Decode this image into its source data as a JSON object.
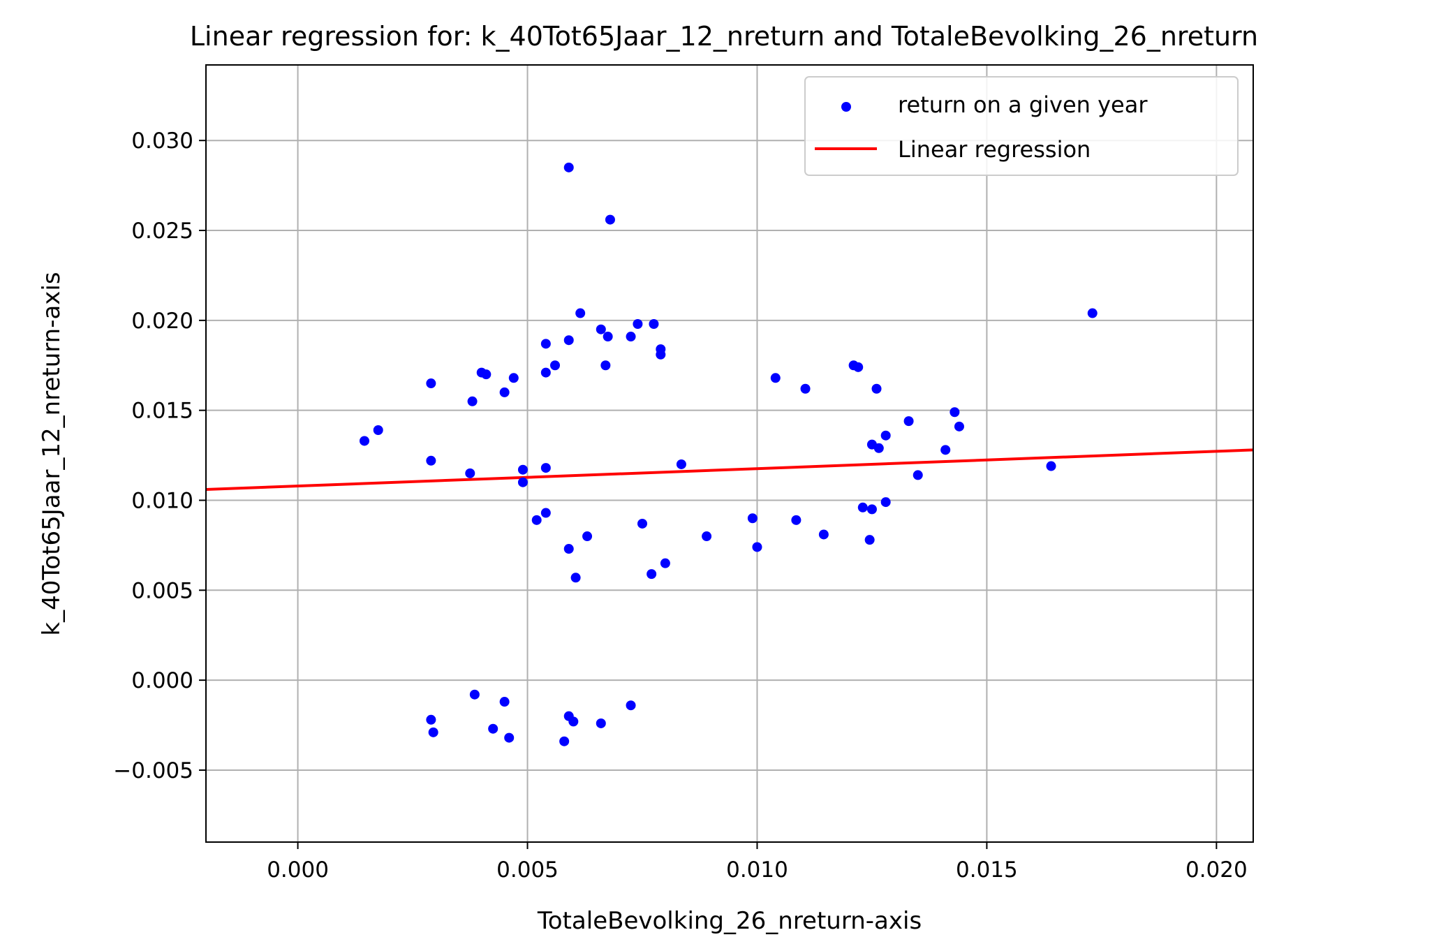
{
  "chart_data": {
    "type": "scatter",
    "title": "Linear regression for: k_40Tot65Jaar_12_nreturn and TotaleBevolking_26_nreturn",
    "xlabel": "TotaleBevolking_26_nreturn-axis",
    "ylabel": "k_40Tot65Jaar_12_nreturn-axis",
    "xlim": [
      -0.002,
      0.0208
    ],
    "ylim": [
      -0.009,
      0.0342
    ],
    "grid": true,
    "legend_position": "top-right",
    "x_ticks": [
      0.0,
      0.005,
      0.01,
      0.015,
      0.02
    ],
    "x_tick_labels": [
      "0.000",
      "0.005",
      "0.010",
      "0.015",
      "0.020"
    ],
    "y_ticks": [
      -0.005,
      0.0,
      0.005,
      0.01,
      0.015,
      0.02,
      0.025,
      0.03
    ],
    "y_tick_labels": [
      "−0.005",
      "0.000",
      "0.005",
      "0.010",
      "0.015",
      "0.020",
      "0.025",
      "0.030"
    ],
    "series": [
      {
        "name": "return on a given year",
        "type": "scatter",
        "color": "#0000ff",
        "points": [
          [
            0.00145,
            0.0133
          ],
          [
            0.00175,
            0.0139
          ],
          [
            0.0029,
            0.0165
          ],
          [
            0.0029,
            0.0122
          ],
          [
            0.0029,
            -0.0022
          ],
          [
            0.00295,
            -0.0029
          ],
          [
            0.00375,
            0.0115
          ],
          [
            0.0038,
            0.0155
          ],
          [
            0.00385,
            -0.0008
          ],
          [
            0.004,
            0.0171
          ],
          [
            0.0041,
            0.017
          ],
          [
            0.00425,
            -0.0027
          ],
          [
            0.0045,
            0.016
          ],
          [
            0.0045,
            -0.0012
          ],
          [
            0.0046,
            -0.0032
          ],
          [
            0.0047,
            0.0168
          ],
          [
            0.0049,
            0.0117
          ],
          [
            0.0049,
            0.011
          ],
          [
            0.0052,
            0.0089
          ],
          [
            0.0054,
            0.0093
          ],
          [
            0.0054,
            0.0118
          ],
          [
            0.0054,
            0.0187
          ],
          [
            0.0054,
            0.0171
          ],
          [
            0.0056,
            0.0175
          ],
          [
            0.0058,
            -0.0034
          ],
          [
            0.0059,
            0.0285
          ],
          [
            0.0059,
            0.0189
          ],
          [
            0.0059,
            0.0073
          ],
          [
            0.0059,
            -0.002
          ],
          [
            0.006,
            -0.0023
          ],
          [
            0.00605,
            0.0057
          ],
          [
            0.00615,
            0.0204
          ],
          [
            0.0063,
            0.008
          ],
          [
            0.0066,
            0.0195
          ],
          [
            0.0066,
            -0.0024
          ],
          [
            0.0067,
            0.0175
          ],
          [
            0.00675,
            0.0191
          ],
          [
            0.0068,
            0.0256
          ],
          [
            0.00725,
            0.0191
          ],
          [
            0.00725,
            -0.0014
          ],
          [
            0.0074,
            0.0198
          ],
          [
            0.0075,
            0.0087
          ],
          [
            0.0077,
            0.0059
          ],
          [
            0.00775,
            0.0198
          ],
          [
            0.0079,
            0.0184
          ],
          [
            0.0079,
            0.0181
          ],
          [
            0.008,
            0.0065
          ],
          [
            0.00835,
            0.012
          ],
          [
            0.0089,
            0.008
          ],
          [
            0.0099,
            0.009
          ],
          [
            0.01,
            0.0074
          ],
          [
            0.0104,
            0.0168
          ],
          [
            0.01085,
            0.0089
          ],
          [
            0.01105,
            0.0162
          ],
          [
            0.01145,
            0.0081
          ],
          [
            0.0121,
            0.0175
          ],
          [
            0.0122,
            0.0174
          ],
          [
            0.0123,
            0.0096
          ],
          [
            0.01245,
            0.0078
          ],
          [
            0.0125,
            0.0095
          ],
          [
            0.0125,
            0.0131
          ],
          [
            0.0126,
            0.0162
          ],
          [
            0.01265,
            0.0129
          ],
          [
            0.0128,
            0.0136
          ],
          [
            0.0128,
            0.0099
          ],
          [
            0.0133,
            0.0144
          ],
          [
            0.0135,
            0.0114
          ],
          [
            0.0141,
            0.0128
          ],
          [
            0.0143,
            0.0149
          ],
          [
            0.0144,
            0.0141
          ],
          [
            0.0164,
            0.0119
          ],
          [
            0.0173,
            0.0204
          ]
        ]
      },
      {
        "name": "Linear regression",
        "type": "line",
        "color": "#ff0000",
        "points": [
          [
            -0.002,
            0.0106
          ],
          [
            0.0208,
            0.0128
          ]
        ]
      }
    ]
  }
}
